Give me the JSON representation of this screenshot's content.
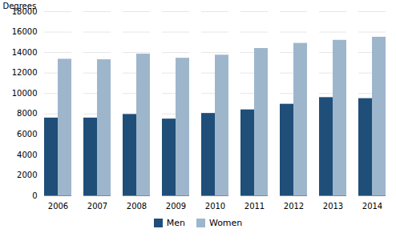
{
  "chart_data": {
    "type": "bar",
    "categories": [
      "2006",
      "2007",
      "2008",
      "2009",
      "2010",
      "2011",
      "2012",
      "2013",
      "2014"
    ],
    "series": [
      {
        "name": "Men",
        "color": "#1F4E79",
        "values": [
          7600,
          7600,
          7950,
          7500,
          8050,
          8400,
          8950,
          9600,
          9500
        ]
      },
      {
        "name": "Women",
        "color": "#9EB6CC",
        "values": [
          13350,
          13300,
          13850,
          13450,
          13750,
          14400,
          14900,
          15200,
          15500
        ]
      }
    ],
    "ylabel": "Degrees",
    "ylim": [
      0,
      18000
    ],
    "yticks": [
      0,
      2000,
      4000,
      6000,
      8000,
      10000,
      12000,
      14000,
      16000,
      18000
    ],
    "grid": true,
    "legend": "bottom"
  }
}
